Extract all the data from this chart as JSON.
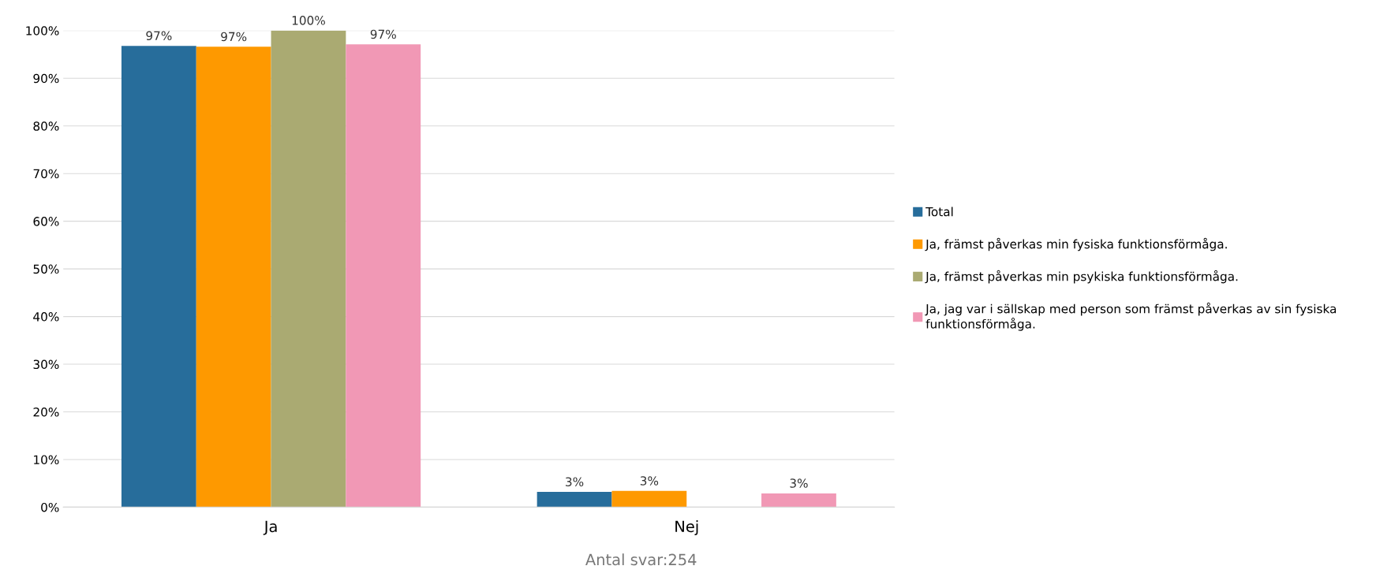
{
  "chart_data": {
    "type": "bar",
    "categories": [
      "Ja",
      "Nej"
    ],
    "series": [
      {
        "name": "Total",
        "color": "#276d9b",
        "values": [
          96.8,
          3.2
        ],
        "value_labels": [
          "97%",
          "3%"
        ]
      },
      {
        "name": "Ja, främst påverkas min fysiska funktionsförmåga.",
        "color": "#fe9900",
        "values": [
          96.6,
          3.4
        ],
        "value_labels": [
          "97%",
          "3%"
        ]
      },
      {
        "name": "Ja, främst påverkas min psykiska funktionsförmåga.",
        "color": "#aaaa72",
        "values": [
          100,
          0
        ],
        "value_labels": [
          "100%",
          null
        ]
      },
      {
        "name": "Ja, jag var i sällskap med person som främst påverkas av sin fysiska funktionsförmåga.",
        "color": "#f198b5",
        "values": [
          97.1,
          2.9
        ],
        "value_labels": [
          "97%",
          "3%"
        ]
      }
    ],
    "ylim": [
      0,
      100
    ],
    "yticks": [
      {
        "value": 0,
        "label": "0%"
      },
      {
        "value": 10,
        "label": "10%"
      },
      {
        "value": 20,
        "label": "20%"
      },
      {
        "value": 30,
        "label": "30%"
      },
      {
        "value": 40,
        "label": "40%"
      },
      {
        "value": 50,
        "label": "50%"
      },
      {
        "value": 60,
        "label": "60%"
      },
      {
        "value": 70,
        "label": "70%"
      },
      {
        "value": 80,
        "label": "80%"
      },
      {
        "value": 90,
        "label": "90%"
      },
      {
        "value": 100,
        "label": "100%"
      }
    ],
    "grid": "y",
    "legend": "right",
    "annotations": [
      "Antal svar:254"
    ]
  }
}
